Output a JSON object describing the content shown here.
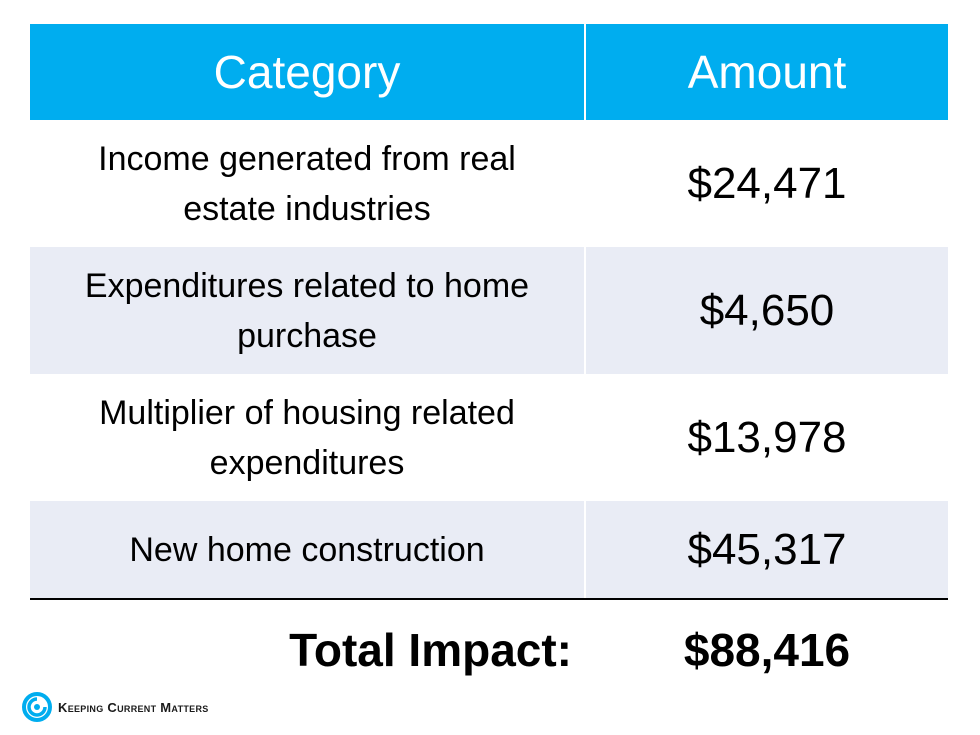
{
  "table": {
    "headers": {
      "category": "Category",
      "amount": "Amount"
    },
    "rows": [
      {
        "category": "Income generated from real estate industries",
        "amount": "$24,471"
      },
      {
        "category": "Expenditures related to home purchase",
        "amount": "$4,650"
      },
      {
        "category": "Multiplier of housing related expenditures",
        "amount": "$13,978"
      },
      {
        "category": "New home construction",
        "amount": "$45,317"
      }
    ],
    "total": {
      "label": "Total Impact:",
      "amount": "$88,416"
    }
  },
  "brand": {
    "name": "Keeping Current Matters",
    "icon": "kcm-swirl-icon"
  },
  "colors": {
    "header_bg": "#00adef",
    "stripe_bg": "#e9ecf5",
    "header_text": "#ffffff"
  }
}
